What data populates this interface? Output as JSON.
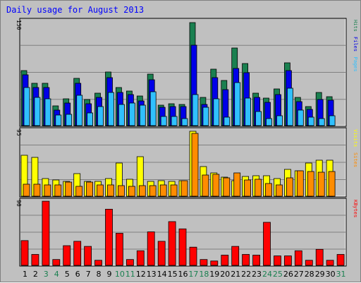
{
  "title": "Daily usage for August 2013",
  "colors": {
    "hits": "#1a8050",
    "files": "#0000e8",
    "pages": "#30c0ff",
    "visits": "#ffff00",
    "sites": "#ff8c00",
    "kbytes": "#ff0000",
    "weekend_label": "#1a8050",
    "weekday_label": "#000000"
  },
  "chart_data": [
    {
      "type": "bar",
      "panel": "top",
      "categories": [
        "1",
        "2",
        "3",
        "4",
        "5",
        "6",
        "7",
        "8",
        "9",
        "10",
        "11",
        "12",
        "13",
        "14",
        "15",
        "16",
        "17",
        "18",
        "19",
        "20",
        "21",
        "22",
        "23",
        "24",
        "25",
        "26",
        "27",
        "28",
        "29",
        "30",
        "31"
      ],
      "weekend_days": [
        "3",
        "4",
        "10",
        "11",
        "17",
        "18",
        "24",
        "25",
        "31"
      ],
      "ylim": [
        0,
        150
      ],
      "series": [
        {
          "name": "Hits",
          "color_key": "hits",
          "values": [
            78,
            60,
            60,
            28,
            38,
            67,
            37,
            46,
            76,
            54,
            49,
            42,
            73,
            29,
            31,
            30,
            146,
            40,
            80,
            64,
            110,
            88,
            46,
            39,
            52,
            89,
            40,
            27,
            47,
            41,
            0
          ]
        },
        {
          "name": "Files",
          "color_key": "files",
          "values": [
            72,
            54,
            54,
            22,
            32,
            60,
            31,
            40,
            68,
            47,
            44,
            35,
            65,
            26,
            27,
            27,
            114,
            30,
            68,
            51,
            81,
            75,
            40,
            33,
            44,
            78,
            34,
            23,
            37,
            36,
            0
          ]
        },
        {
          "name": "Pages",
          "color_key": "pages",
          "values": [
            54,
            40,
            38,
            15,
            16,
            43,
            18,
            27,
            47,
            30,
            32,
            29,
            48,
            13,
            13,
            10,
            44,
            26,
            38,
            12,
            61,
            39,
            20,
            10,
            14,
            53,
            22,
            12,
            10,
            14,
            0
          ]
        }
      ]
    },
    {
      "type": "bar",
      "panel": "middle",
      "categories": [
        "1",
        "2",
        "3",
        "4",
        "5",
        "6",
        "7",
        "8",
        "9",
        "10",
        "11",
        "12",
        "13",
        "14",
        "15",
        "16",
        "17",
        "18",
        "19",
        "20",
        "21",
        "22",
        "23",
        "24",
        "25",
        "26",
        "27",
        "28",
        "29",
        "30",
        "31"
      ],
      "weekend_days": [
        "3",
        "4",
        "10",
        "11",
        "17",
        "18",
        "24",
        "25",
        "31"
      ],
      "ylim": [
        0,
        95
      ],
      "series": [
        {
          "name": "Visits",
          "color_key": "visits",
          "values": [
            58,
            55,
            25,
            23,
            21,
            32,
            21,
            21,
            25,
            47,
            24,
            56,
            21,
            22,
            21,
            22,
            92,
            42,
            33,
            27,
            22,
            28,
            29,
            29,
            25,
            38,
            36,
            47,
            51,
            51,
            0
          ]
        },
        {
          "name": "Sites",
          "color_key": "sites",
          "values": [
            17,
            17,
            16,
            16,
            20,
            14,
            20,
            16,
            16,
            15,
            14,
            15,
            15,
            16,
            16,
            22,
            89,
            30,
            31,
            26,
            33,
            23,
            24,
            18,
            16,
            26,
            36,
            35,
            34,
            35,
            0
          ]
        }
      ]
    },
    {
      "type": "bar",
      "panel": "bottom",
      "categories": [
        "1",
        "2",
        "3",
        "4",
        "5",
        "6",
        "7",
        "8",
        "9",
        "10",
        "11",
        "12",
        "13",
        "14",
        "15",
        "16",
        "17",
        "18",
        "19",
        "20",
        "21",
        "22",
        "23",
        "24",
        "25",
        "26",
        "27",
        "28",
        "29",
        "30",
        "31"
      ],
      "weekend_days": [
        "3",
        "4",
        "10",
        "11",
        "17",
        "18",
        "24",
        "25",
        "31"
      ],
      "ylim": [
        0,
        90
      ],
      "series": [
        {
          "name": "KBytes",
          "color_key": "kbytes",
          "values": [
            34,
            15,
            88,
            8,
            27,
            33,
            26,
            7,
            77,
            44,
            8,
            20,
            46,
            33,
            60,
            50,
            25,
            8,
            6,
            14,
            26,
            15,
            14,
            59,
            13,
            13,
            20,
            7,
            22,
            7,
            15
          ]
        }
      ]
    }
  ]
}
